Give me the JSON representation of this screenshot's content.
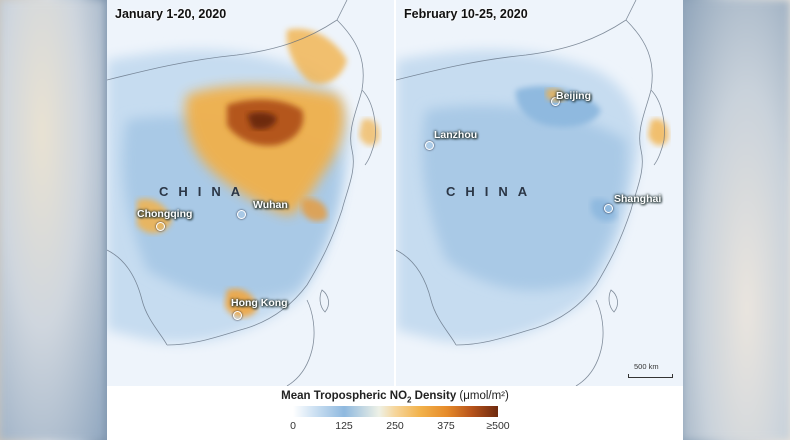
{
  "panels": [
    {
      "title": "January 1-20, 2020",
      "country": "CHINA",
      "cities": [
        "Chongqing",
        "Wuhan",
        "Hong Kong"
      ]
    },
    {
      "title": "February 10-25, 2020",
      "country": "CHINA",
      "cities": [
        "Beijing",
        "Lanzhou",
        "Shanghai"
      ],
      "scale_label": "500 km"
    }
  ],
  "legend": {
    "title_main": "Mean Tropospheric NO",
    "title_sub": "2",
    "title_rest": " Density ",
    "unit": "(μmol/m²)",
    "ticks": [
      "0",
      "125",
      "250",
      "375",
      "≥500"
    ]
  },
  "colors": {
    "low": "#ffffff",
    "mid_blue": "#8fb9df",
    "mid_orange": "#f2b24b",
    "high": "#6e2a0f",
    "sea": "#eef4fb"
  }
}
